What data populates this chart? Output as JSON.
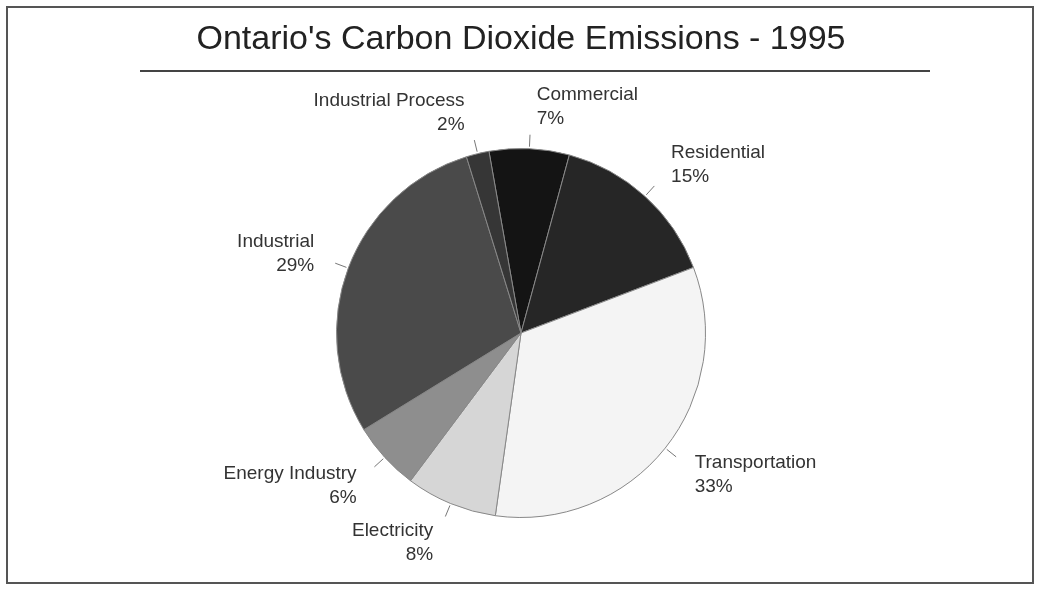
{
  "chart_data": {
    "type": "pie",
    "title": "Ontario's Carbon Dioxide Emissions - 1995",
    "categories": [
      "Commercial",
      "Residential",
      "Transportation",
      "Electricity",
      "Energy Industry",
      "Industrial",
      "Industrial Process"
    ],
    "values": [
      7,
      15,
      33,
      8,
      6,
      29,
      2
    ],
    "value_labels": [
      "7%",
      "15%",
      "33%",
      "8%",
      "6%",
      "29%",
      "2%"
    ],
    "colors": [
      "#141414",
      "#262626",
      "#f4f4f4",
      "#d6d6d6",
      "#8e8e8e",
      "#4a4a4a",
      "#363636"
    ],
    "legend": false
  }
}
